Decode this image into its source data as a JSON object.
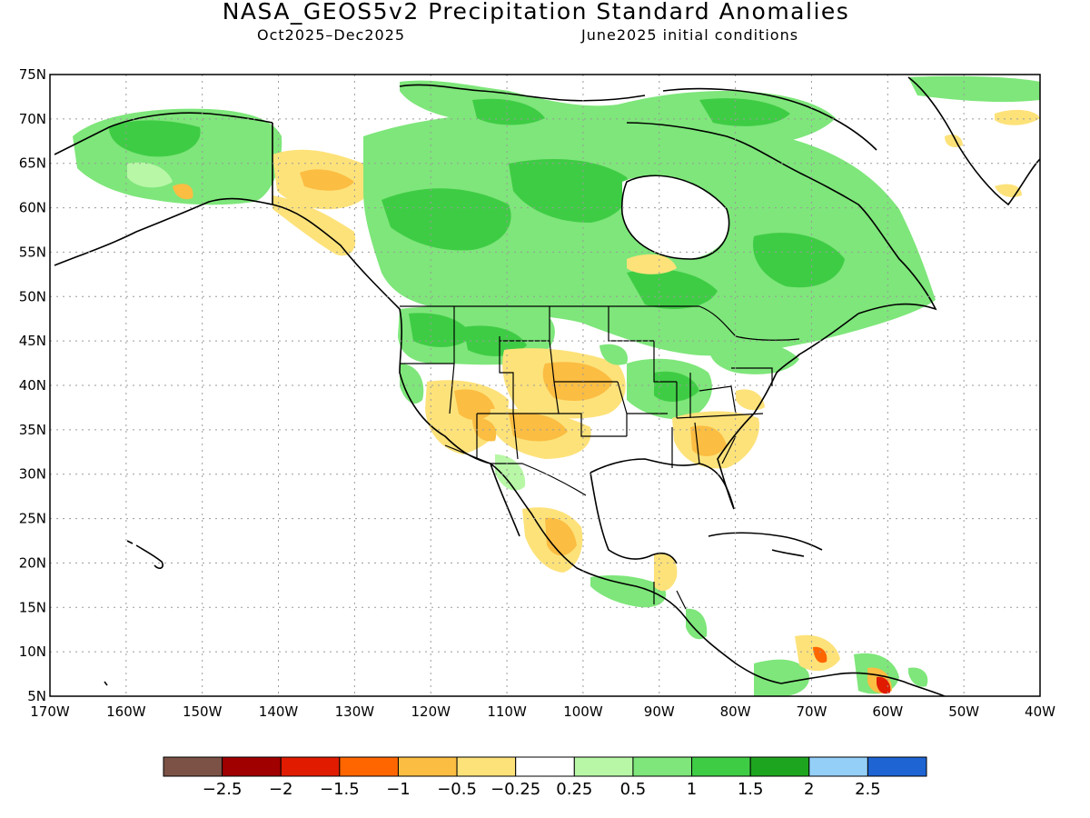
{
  "header": {
    "title": "NASA_GEOS5v2 Precipitation Standard Anomalies",
    "period": "Oct2025–Dec2025",
    "init": "June2025 initial conditions"
  },
  "map": {
    "lat_labels": [
      "75N",
      "70N",
      "65N",
      "60N",
      "55N",
      "50N",
      "45N",
      "40N",
      "35N",
      "30N",
      "25N",
      "20N",
      "15N",
      "10N",
      "5N"
    ],
    "lon_labels": [
      "170W",
      "160W",
      "150W",
      "140W",
      "130W",
      "120W",
      "110W",
      "100W",
      "90W",
      "80W",
      "70W",
      "60W",
      "50W",
      "40W"
    ],
    "colors": {
      "land_outline": "#000000",
      "grid": "#9a9a9a"
    }
  },
  "colorbar": {
    "colors": [
      "#7b5245",
      "#a10000",
      "#e01b00",
      "#ff6600",
      "#fbbd42",
      "#fde27a",
      "#ffffff",
      "#b7f7a6",
      "#7ee67a",
      "#3fcc45",
      "#1ea51f",
      "#94cff8",
      "#1e64d3"
    ],
    "labels": [
      "−2.5",
      "−2",
      "−1.5",
      "−1",
      "−0.5",
      "−0.25",
      "0.25",
      "0.5",
      "1",
      "1.5",
      "2",
      "2.5"
    ]
  }
}
